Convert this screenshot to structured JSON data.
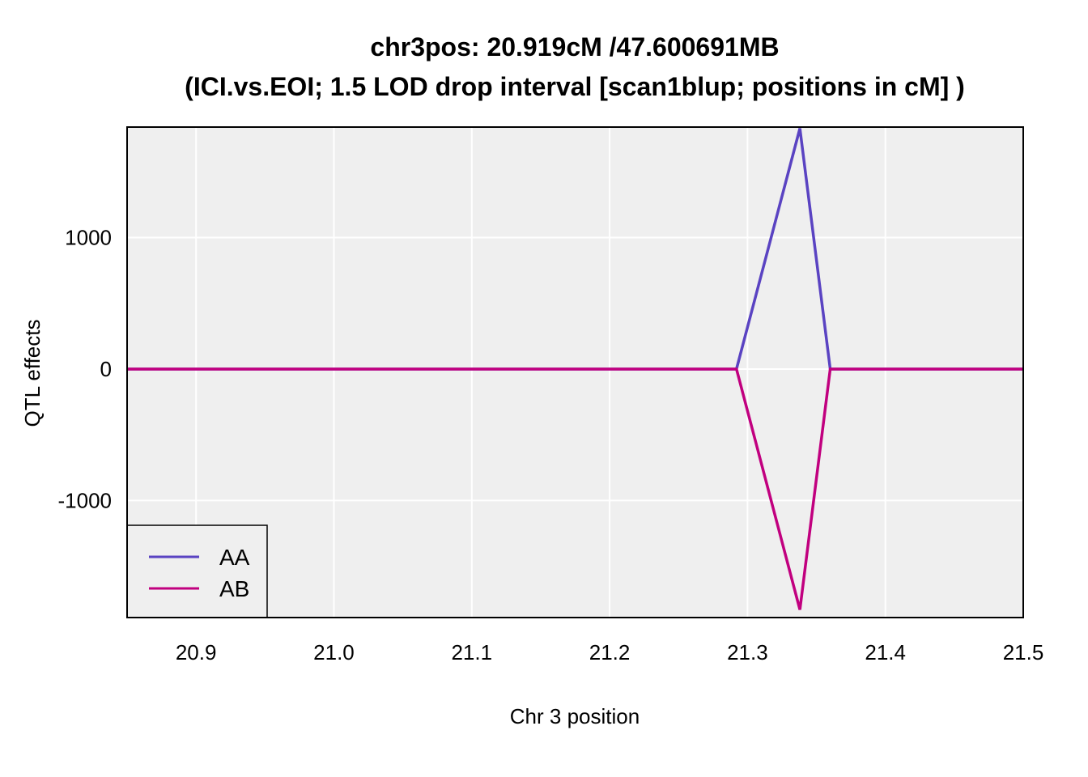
{
  "chart_data": {
    "type": "line",
    "title_line1": "chr3pos: 20.919cM /47.600691MB",
    "title_line2": "(ICI.vs.EOI; 1.5 LOD drop interval [scan1blup; positions in cM] )",
    "xlabel": "Chr 3 position",
    "ylabel": "QTL effects",
    "xlim": [
      20.85,
      21.5
    ],
    "ylim": [
      -1890,
      1840
    ],
    "xticks": [
      "20.9",
      "21.0",
      "21.1",
      "21.2",
      "21.3",
      "21.4",
      "21.5"
    ],
    "yticks": [
      "1000",
      "0",
      "-1000"
    ],
    "grid": true,
    "legend_position": "bottom-left",
    "series": [
      {
        "name": "AA",
        "color": "#5a43c2",
        "x": [
          20.85,
          21.292,
          21.338,
          21.36,
          21.5
        ],
        "y": [
          0,
          0,
          1830,
          0,
          0
        ]
      },
      {
        "name": "AB",
        "color": "#c1007f",
        "x": [
          20.85,
          21.292,
          21.338,
          21.36,
          21.5
        ],
        "y": [
          0,
          0,
          -1830,
          0,
          0
        ]
      }
    ]
  }
}
